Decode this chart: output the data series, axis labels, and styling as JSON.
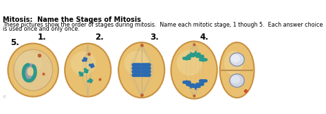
{
  "title": "Mitosis:  Name the Stages of Mitosis",
  "description_line1": "These pictures show the order of stages during mitosis.  Name each mitotic stage, 1 though 5.  Each answer choice",
  "description_line2": "is used once and only once.",
  "labels": [
    "1.",
    "2.",
    "3.",
    "4."
  ],
  "label5": "5.",
  "cell_bg": "#e8c070",
  "cell_bg2": "#dab860",
  "cell_border": "#c89040",
  "title_fontsize": 7.0,
  "desc_fontsize": 5.8,
  "label_fontsize": 8.5,
  "chrom_blue": "#2a6ab0",
  "chrom_teal": "#2a9a8a",
  "spindle_color": "#b0b0a0",
  "nucleolus_color": "#c06030"
}
